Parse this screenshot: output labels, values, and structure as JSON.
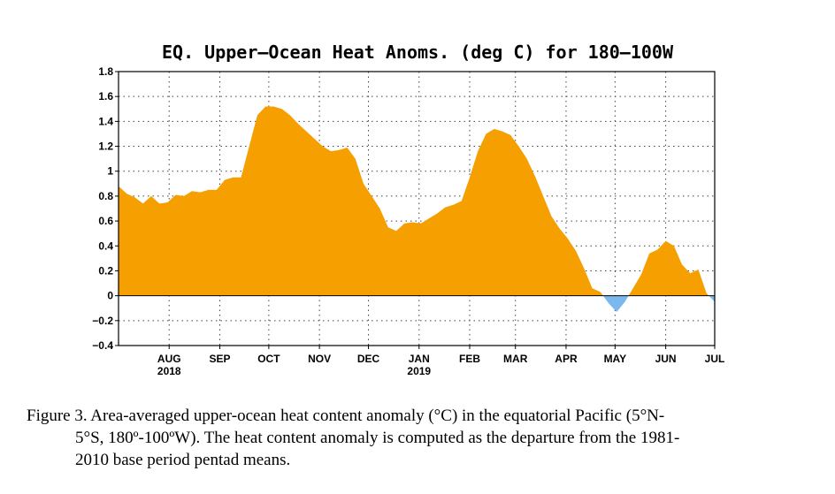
{
  "chart_data": {
    "type": "area",
    "title": "EQ. Upper-Ocean Heat Anoms. (deg C) for 180-100W",
    "xlabel": "",
    "ylabel": "",
    "ylim": [
      -0.4,
      1.8
    ],
    "yticks": [
      1.8,
      1.6,
      1.4,
      1.2,
      1,
      0.8,
      0.6,
      0.4,
      0.2,
      0,
      -0.2,
      -0.4
    ],
    "ytick_labels": [
      "1.8",
      "1.6",
      "1.4",
      "1.2",
      "1",
      "0.8",
      "0.6",
      "0.4",
      "0.2",
      "0",
      "−0.2",
      "−0.4"
    ],
    "xlim": [
      "2018-07-01",
      "2019-07-01"
    ],
    "xticks": [
      {
        "date": "2018-08-01",
        "label": "AUG",
        "sublabel": "2018"
      },
      {
        "date": "2018-09-01",
        "label": "SEP",
        "sublabel": ""
      },
      {
        "date": "2018-10-01",
        "label": "OCT",
        "sublabel": ""
      },
      {
        "date": "2018-11-01",
        "label": "NOV",
        "sublabel": ""
      },
      {
        "date": "2018-12-01",
        "label": "DEC",
        "sublabel": ""
      },
      {
        "date": "2019-01-01",
        "label": "JAN",
        "sublabel": "2019"
      },
      {
        "date": "2019-02-01",
        "label": "FEB",
        "sublabel": ""
      },
      {
        "date": "2019-03-01",
        "label": "MAR",
        "sublabel": ""
      },
      {
        "date": "2019-04-01",
        "label": "APR",
        "sublabel": ""
      },
      {
        "date": "2019-05-01",
        "label": "MAY",
        "sublabel": ""
      },
      {
        "date": "2019-06-01",
        "label": "JUN",
        "sublabel": ""
      },
      {
        "date": "2019-07-01",
        "label": "JUL",
        "sublabel": ""
      }
    ],
    "grid": true,
    "positive_color": "#f5a000",
    "negative_color": "#7ab8ee",
    "series": [
      {
        "x": [
          "2018-07-01",
          "2018-07-06",
          "2018-07-11",
          "2018-07-16",
          "2018-07-21",
          "2018-07-26",
          "2018-07-31",
          "2018-08-05",
          "2018-08-10",
          "2018-08-15",
          "2018-08-20",
          "2018-08-25",
          "2018-08-30",
          "2018-09-04",
          "2018-09-09",
          "2018-09-14",
          "2018-09-19",
          "2018-09-24",
          "2018-09-29",
          "2018-10-04",
          "2018-10-09",
          "2018-10-14",
          "2018-10-19",
          "2018-10-24",
          "2018-10-29",
          "2018-11-03",
          "2018-11-08",
          "2018-11-13",
          "2018-11-18",
          "2018-11-23",
          "2018-11-28",
          "2018-12-03",
          "2018-12-08",
          "2018-12-13",
          "2018-12-18",
          "2018-12-23",
          "2018-12-28",
          "2019-01-02",
          "2019-01-07",
          "2019-01-12",
          "2019-01-17",
          "2019-01-22",
          "2019-01-27",
          "2019-02-01",
          "2019-02-06",
          "2019-02-11",
          "2019-02-16",
          "2019-02-21",
          "2019-02-26",
          "2019-03-03",
          "2019-03-08",
          "2019-03-13",
          "2019-03-18",
          "2019-03-23",
          "2019-03-28",
          "2019-04-02",
          "2019-04-07",
          "2019-04-12",
          "2019-04-17",
          "2019-04-22",
          "2019-04-27",
          "2019-05-02",
          "2019-05-07",
          "2019-05-12",
          "2019-05-17",
          "2019-05-22",
          "2019-05-27",
          "2019-06-01",
          "2019-06-06",
          "2019-06-11",
          "2019-06-16",
          "2019-06-21",
          "2019-06-26",
          "2019-07-01"
        ],
        "y": [
          0.88,
          0.82,
          0.79,
          0.74,
          0.8,
          0.74,
          0.75,
          0.81,
          0.8,
          0.84,
          0.83,
          0.85,
          0.85,
          0.93,
          0.95,
          0.95,
          1.2,
          1.45,
          1.52,
          1.52,
          1.5,
          1.45,
          1.38,
          1.32,
          1.26,
          1.2,
          1.16,
          1.17,
          1.19,
          1.1,
          0.9,
          0.8,
          0.7,
          0.55,
          0.52,
          0.58,
          0.59,
          0.58,
          0.62,
          0.66,
          0.71,
          0.73,
          0.76,
          0.95,
          1.16,
          1.3,
          1.34,
          1.32,
          1.29,
          1.2,
          1.1,
          0.96,
          0.8,
          0.64,
          0.54,
          0.46,
          0.36,
          0.22,
          0.06,
          0.03,
          -0.06,
          -0.13,
          -0.05,
          0.06,
          0.17,
          0.34,
          0.37,
          0.44,
          0.4,
          0.25,
          0.18,
          0.21,
          0.02,
          -0.05
        ]
      }
    ]
  },
  "caption": {
    "line1": "Figure 3. Area-averaged upper-ocean heat content anomaly (°C) in the equatorial Pacific (5°N-",
    "line2": "5°S, 180º-100ºW). The heat content anomaly is computed as the departure from the 1981-",
    "line3": "2010 base period pentad means."
  }
}
